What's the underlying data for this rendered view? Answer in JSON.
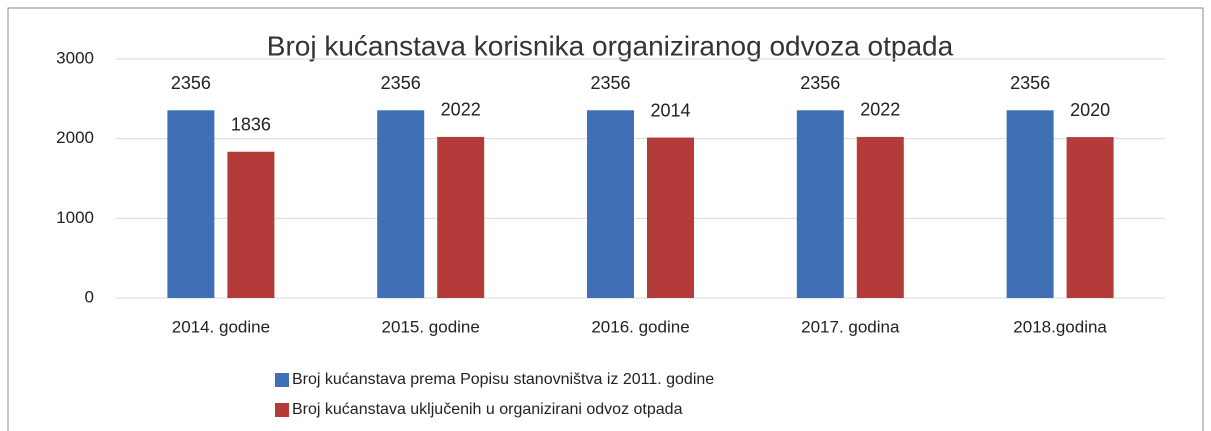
{
  "chart_data": {
    "type": "bar",
    "title": "Broj kućanstava korisnika organiziranog odvoza otpada",
    "categories": [
      "2014. godine",
      "2015. godine",
      "2016. godine",
      "2017. godina",
      "2018.godina"
    ],
    "series": [
      {
        "name": "Broj kućanstava prema Popisu stanovništva iz 2011. godine",
        "color": "#3f6fb5",
        "values": [
          2356,
          2356,
          2356,
          2356,
          2356
        ]
      },
      {
        "name": "Broj kućanstava uključenih u organizirani odvoz otpada",
        "color": "#b33c3a",
        "values": [
          1836,
          2022,
          2014,
          2022,
          2020
        ]
      }
    ],
    "ylim": [
      0,
      3000
    ],
    "yticks": [
      0,
      1000,
      2000,
      3000
    ],
    "grid": true,
    "legend": "bottom"
  }
}
